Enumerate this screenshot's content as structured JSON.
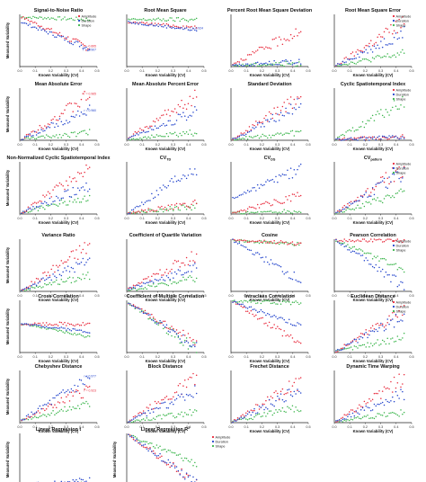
{
  "colors": {
    "amplitude": "#e8283a",
    "duration": "#2244cc",
    "shape": "#39b54a",
    "axis": "#222222"
  },
  "chart_data": [
    {
      "type": "scatter",
      "title": "Signal-to-Noise Ratio",
      "xlabel": "Known Variability (CV)",
      "ylabel": "Measured Variability",
      "xlim": [
        0,
        0.5
      ],
      "xticks": [
        "0.0",
        "0.1",
        "0.2",
        "0.3",
        "0.4",
        "0.5"
      ],
      "ylim": [
        0,
        1
      ],
      "trend": {
        "amplitude": [
          0.95,
          0.35
        ],
        "duration": [
          0.85,
          0.35
        ],
        "shape": [
          0.95,
          0.9
        ]
      },
      "annotations": [
        {
          "text": "r = -0.895",
          "series": "amplitude"
        },
        {
          "text": "r = -0.907",
          "series": "duration"
        }
      ]
    },
    {
      "type": "scatter",
      "title": "Root Mean Square",
      "xlabel": "Known Variability (CV)",
      "ylabel": "",
      "xlim": [
        0,
        0.5
      ],
      "xticks": [
        "0.0",
        "0.1",
        "0.2",
        "0.3",
        "0.4",
        "0.5"
      ],
      "ylim": [
        0,
        1
      ],
      "trend": {
        "amplitude": [
          0.85,
          0.75
        ],
        "duration": [
          0.85,
          0.7
        ],
        "shape": [
          0.9,
          0.9
        ]
      },
      "annotations": [
        {
          "text": "r = -0.924",
          "series": "duration"
        }
      ]
    },
    {
      "type": "scatter",
      "title": "Percent Root Mean Square Deviation",
      "xlabel": "Known Variability (CV)",
      "ylabel": "",
      "xlim": [
        0,
        0.5
      ],
      "xticks": [
        "0.0",
        "0.1",
        "0.2",
        "0.3",
        "0.4",
        "0.5"
      ],
      "ylim": [
        0,
        1
      ],
      "trend": {
        "amplitude": [
          0.05,
          0.7
        ],
        "duration": [
          0.02,
          0.1
        ],
        "shape": [
          0.02,
          0.06
        ]
      },
      "annotations": []
    },
    {
      "type": "scatter",
      "title": "Root Mean Square Error",
      "xlabel": "Known Variability (CV)",
      "ylabel": "",
      "xlim": [
        0,
        0.5
      ],
      "xticks": [
        "0.0",
        "0.1",
        "0.2",
        "0.3",
        "0.4",
        "0.5"
      ],
      "ylim": [
        0,
        1
      ],
      "trend": {
        "amplitude": [
          0.02,
          0.85
        ],
        "duration": [
          0.02,
          0.65
        ],
        "shape": [
          0.02,
          0.25
        ]
      },
      "annotations": []
    },
    {
      "type": "scatter",
      "title": "Mean Absolute Error",
      "xlabel": "Known Variability (CV)",
      "ylabel": "Measured Variability",
      "xlim": [
        0,
        0.5
      ],
      "xticks": [
        "0.0",
        "0.1",
        "0.2",
        "0.3",
        "0.4",
        "0.5"
      ],
      "ylim": [
        0,
        1
      ],
      "trend": {
        "amplitude": [
          0.02,
          0.85
        ],
        "duration": [
          0.02,
          0.6
        ],
        "shape": [
          0.02,
          0.15
        ]
      },
      "annotations": [
        {
          "text": "r = 0.965",
          "series": "amplitude"
        },
        {
          "text": "r = 0.960",
          "series": "duration"
        }
      ]
    },
    {
      "type": "scatter",
      "title": "Mean Absolute Percent Error",
      "xlabel": "Known Variability (CV)",
      "ylabel": "",
      "xlim": [
        0,
        0.5
      ],
      "xticks": [
        "0.0",
        "0.1",
        "0.2",
        "0.3",
        "0.4",
        "0.5"
      ],
      "ylim": [
        0,
        1
      ],
      "trend": {
        "amplitude": [
          0.05,
          0.85
        ],
        "duration": [
          0.05,
          0.55
        ],
        "shape": [
          0.02,
          0.15
        ]
      },
      "annotations": []
    },
    {
      "type": "scatter",
      "title": "Standard Deviation",
      "xlabel": "Known Variability (CV)",
      "ylabel": "",
      "xlim": [
        0,
        0.5
      ],
      "xticks": [
        "0.0",
        "0.1",
        "0.2",
        "0.3",
        "0.4",
        "0.5"
      ],
      "ylim": [
        0,
        1
      ],
      "trend": {
        "amplitude": [
          0.02,
          0.85
        ],
        "duration": [
          0.02,
          0.7
        ],
        "shape": [
          0.02,
          0.15
        ]
      },
      "annotations": []
    },
    {
      "type": "scatter",
      "title": "Cyclic Spatiotemporal Index",
      "xlabel": "Known Variability (CV)",
      "ylabel": "",
      "xlim": [
        0,
        0.5
      ],
      "xticks": [
        "0.0",
        "0.1",
        "0.2",
        "0.3",
        "0.4",
        "0.5"
      ],
      "ylim": [
        0,
        1
      ],
      "trend": {
        "amplitude": [
          0.02,
          0.06
        ],
        "duration": [
          0.02,
          0.05
        ],
        "shape": [
          0.02,
          0.75
        ]
      },
      "annotations": []
    },
    {
      "type": "scatter",
      "title": "Non-Normalized Cyclic Spatiotemporal Index",
      "xlabel": "Known Variability (CV)",
      "ylabel": "Measured Variability",
      "xlim": [
        0,
        0.5
      ],
      "xticks": [
        "0.0",
        "0.1",
        "0.2",
        "0.3",
        "0.4",
        "0.5"
      ],
      "ylim": [
        0,
        1
      ],
      "trend": {
        "amplitude": [
          0.02,
          0.9
        ],
        "duration": [
          0.02,
          0.55
        ],
        "shape": [
          0.02,
          0.35
        ]
      },
      "annotations": []
    },
    {
      "type": "scatter",
      "title": "CV",
      "title_sub": "TD",
      "xlabel": "Known Variability (CV)",
      "ylabel": "",
      "xlim": [
        0,
        0.5
      ],
      "xticks": [
        "0.0",
        "0.1",
        "0.2",
        "0.3",
        "0.4",
        "0.5"
      ],
      "ylim": [
        0,
        1
      ],
      "trend": {
        "amplitude": [
          0.02,
          0.2
        ],
        "duration": [
          0.02,
          0.9
        ],
        "shape": [
          0.02,
          0.15
        ]
      },
      "annotations": []
    },
    {
      "type": "scatter",
      "title": "CV",
      "title_sub": "DS",
      "xlabel": "Known Variability (CV)",
      "ylabel": "",
      "xlim": [
        0,
        0.5
      ],
      "xticks": [
        "0.0",
        "0.1",
        "0.2",
        "0.3",
        "0.4",
        "0.5"
      ],
      "ylim": [
        0,
        1
      ],
      "trend": {
        "amplitude": [
          0.02,
          0.35
        ],
        "duration": [
          0.3,
          0.85
        ],
        "shape": [
          0.02,
          0.05
        ]
      },
      "annotations": []
    },
    {
      "type": "scatter",
      "title": "CV",
      "title_sub": "pattern",
      "xlabel": "Known Variability (CV)",
      "ylabel": "",
      "xlim": [
        0,
        0.5
      ],
      "xticks": [
        "0.0",
        "0.1",
        "0.2",
        "0.3",
        "0.4",
        "0.5"
      ],
      "ylim": [
        0,
        1
      ],
      "trend": {
        "amplitude": [
          0.02,
          0.9
        ],
        "duration": [
          0.02,
          0.8
        ],
        "shape": [
          0.02,
          0.4
        ]
      },
      "annotations": []
    },
    {
      "type": "scatter",
      "title": "Variance Ratio",
      "xlabel": "Known Variability (CV)",
      "ylabel": "Measured Variability",
      "xlim": [
        0,
        0.5
      ],
      "xticks": [
        "0.0",
        "0.1",
        "0.2",
        "0.3",
        "0.4",
        "0.5"
      ],
      "ylim": [
        0,
        1
      ],
      "trend": {
        "amplitude": [
          0.02,
          0.9
        ],
        "duration": [
          0.02,
          0.6
        ],
        "shape": [
          0.02,
          0.3
        ]
      },
      "annotations": []
    },
    {
      "type": "scatter",
      "title": "Coefficient of Quartile Variation",
      "xlabel": "Known Variability (CV)",
      "ylabel": "",
      "xlim": [
        0,
        0.5
      ],
      "xticks": [
        "0.0",
        "0.1",
        "0.2",
        "0.3",
        "0.4",
        "0.5"
      ],
      "ylim": [
        0,
        1
      ],
      "trend": {
        "amplitude": [
          0.05,
          0.7
        ],
        "duration": [
          0.05,
          0.45
        ],
        "shape": [
          0.02,
          0.25
        ]
      },
      "annotations": []
    },
    {
      "type": "scatter",
      "title": "Cosine",
      "xlabel": "Known Variability (CV)",
      "ylabel": "",
      "xlim": [
        0,
        0.5
      ],
      "xticks": [
        "0.0",
        "0.1",
        "0.2",
        "0.3",
        "0.4",
        "0.5"
      ],
      "ylim": [
        0,
        1
      ],
      "trend": {
        "amplitude": [
          0.98,
          0.92
        ],
        "duration": [
          0.98,
          0.2
        ],
        "shape": [
          0.98,
          0.9
        ]
      },
      "annotations": []
    },
    {
      "type": "scatter",
      "title": "Pearson Correlation",
      "xlabel": "Known Variability (CV)",
      "ylabel": "",
      "xlim": [
        0,
        0.5
      ],
      "xticks": [
        "0.0",
        "0.1",
        "0.2",
        "0.3",
        "0.4",
        "0.5"
      ],
      "ylim": [
        0,
        1
      ],
      "trend": {
        "amplitude": [
          0.98,
          0.98
        ],
        "duration": [
          0.98,
          0.1
        ],
        "shape": [
          0.98,
          0.4
        ]
      },
      "annotations": []
    },
    {
      "type": "scatter",
      "title": "Cross Correlation",
      "xlabel": "Known Variability (CV)",
      "ylabel": "Measured Variability",
      "xlim": [
        0,
        0.5
      ],
      "xticks": [
        "0.0",
        "0.1",
        "0.2",
        "0.3",
        "0.4",
        "0.5"
      ],
      "ylim": [
        0,
        1
      ],
      "trend": {
        "amplitude": [
          0.55,
          0.55
        ],
        "duration": [
          0.55,
          0.4
        ],
        "shape": [
          0.55,
          0.3
        ]
      },
      "annotations": []
    },
    {
      "type": "scatter",
      "title": "Coefficient of Multiple Correlation",
      "xlabel": "Known Variability (CV)",
      "ylabel": "",
      "xlim": [
        0,
        0.5
      ],
      "xticks": [
        "0.0",
        "0.1",
        "0.2",
        "0.3",
        "0.4",
        "0.5"
      ],
      "ylim": [
        0,
        1
      ],
      "trend": {
        "amplitude": [
          0.95,
          0.2
        ],
        "duration": [
          0.95,
          0.1
        ],
        "shape": [
          0.95,
          0.05
        ]
      },
      "annotations": []
    },
    {
      "type": "scatter",
      "title": "Intraclass Correlation",
      "xlabel": "Known Variability (CV)",
      "ylabel": "",
      "xlim": [
        0,
        0.5
      ],
      "xticks": [
        "0.0",
        "0.1",
        "0.2",
        "0.3",
        "0.4",
        "0.5"
      ],
      "ylim": [
        0,
        1
      ],
      "trend": {
        "amplitude": [
          0.98,
          0.15
        ],
        "duration": [
          0.98,
          0.5
        ],
        "shape": [
          0.98,
          0.95
        ]
      },
      "annotations": []
    },
    {
      "type": "scatter",
      "title": "Euclidean Distance",
      "xlabel": "Known Variability (CV)",
      "ylabel": "",
      "xlim": [
        0,
        0.5
      ],
      "xticks": [
        "0.0",
        "0.1",
        "0.2",
        "0.3",
        "0.4",
        "0.5"
      ],
      "ylim": [
        0,
        1
      ],
      "trend": {
        "amplitude": [
          0.02,
          0.85
        ],
        "duration": [
          0.02,
          0.7
        ],
        "shape": [
          0.02,
          0.3
        ]
      },
      "annotations": []
    },
    {
      "type": "scatter",
      "title": "Chebyshev Distance",
      "xlabel": "Known Variability (CV)",
      "ylabel": "Measured Variability",
      "xlim": [
        0,
        0.5
      ],
      "xticks": [
        "0.0",
        "0.1",
        "0.2",
        "0.3",
        "0.4",
        "0.5"
      ],
      "ylim": [
        0,
        1
      ],
      "trend": {
        "amplitude": [
          0.05,
          0.65
        ],
        "duration": [
          0.05,
          0.85
        ],
        "shape": [
          0.05,
          0.35
        ]
      },
      "annotations": [
        {
          "text": "r = 0.977",
          "series": "duration"
        },
        {
          "text": "r = 0.923",
          "series": "amplitude"
        }
      ]
    },
    {
      "type": "scatter",
      "title": "Block Distance",
      "xlabel": "Known Variability (CV)",
      "ylabel": "",
      "xlim": [
        0,
        0.5
      ],
      "xticks": [
        "0.0",
        "0.1",
        "0.2",
        "0.3",
        "0.4",
        "0.5"
      ],
      "ylim": [
        0,
        1
      ],
      "trend": {
        "amplitude": [
          0.02,
          0.85
        ],
        "duration": [
          0.02,
          0.6
        ],
        "shape": [
          0.02,
          0.2
        ]
      },
      "annotations": []
    },
    {
      "type": "scatter",
      "title": "Frechet Distance",
      "xlabel": "Known Variability (CV)",
      "ylabel": "",
      "xlim": [
        0,
        0.5
      ],
      "xticks": [
        "0.0",
        "0.1",
        "0.2",
        "0.3",
        "0.4",
        "0.5"
      ],
      "ylim": [
        0,
        1
      ],
      "trend": {
        "amplitude": [
          0.02,
          0.8
        ],
        "duration": [
          0.02,
          0.65
        ],
        "shape": [
          0.02,
          0.3
        ]
      },
      "annotations": []
    },
    {
      "type": "scatter",
      "title": "Dynamic Time Warping",
      "xlabel": "Known Variability (CV)",
      "ylabel": "",
      "xlim": [
        0,
        0.5
      ],
      "xticks": [
        "0.0",
        "0.1",
        "0.2",
        "0.3",
        "0.4",
        "0.5"
      ],
      "ylim": [
        0,
        1
      ],
      "trend": {
        "amplitude": [
          0.02,
          0.85
        ],
        "duration": [
          0.02,
          0.55
        ],
        "shape": [
          0.02,
          0.2
        ]
      },
      "annotations": []
    },
    {
      "type": "scatter",
      "title": "Linear Regression t",
      "xlabel": "Known Variability (CV)",
      "ylabel": "Measured Variability",
      "xlim": [
        0,
        0.5
      ],
      "xticks": [
        "0.0",
        "0.1",
        "0.2",
        "0.3",
        "0.4",
        "0.5"
      ],
      "ylim": [
        0,
        1
      ],
      "trend": {
        "amplitude": [
          0.02,
          0.02
        ],
        "duration": [
          0.02,
          0.1
        ],
        "shape": [
          0.02,
          0.02
        ]
      },
      "annotations": []
    },
    {
      "type": "scatter",
      "title": "Linear Regression R",
      "title_sup": "2",
      "xlabel": "Known Variability (CV)",
      "ylabel": "Measured Variability",
      "xlim": [
        0,
        0.5
      ],
      "xticks": [
        "0.0",
        "0.1",
        "0.2",
        "0.3",
        "0.4",
        "0.5"
      ],
      "ylim": [
        0,
        1
      ],
      "trend": {
        "amplitude": [
          0.98,
          0.05
        ],
        "duration": [
          0.98,
          0.05
        ],
        "shape": [
          0.98,
          0.4
        ]
      },
      "annotations": []
    }
  ],
  "legend": {
    "items": [
      {
        "label": "Amplitude",
        "series": "amplitude"
      },
      {
        "label": "Duration",
        "series": "duration"
      },
      {
        "label": "Shape",
        "series": "shape"
      }
    ]
  },
  "legend_panels": [
    0,
    3,
    7,
    11,
    15,
    19,
    25
  ]
}
